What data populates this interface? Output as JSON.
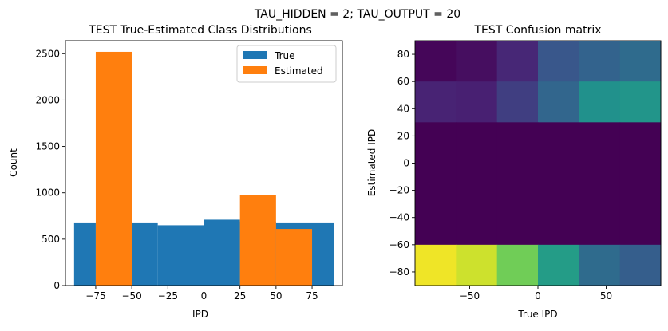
{
  "suptitle": "TAU_HIDDEN = 2; TAU_OUTPUT = 20",
  "chart_data": [
    {
      "type": "bar",
      "title": "TEST True-Estimated Class Distributions",
      "xlabel": "IPD",
      "ylabel": "Count",
      "xlim": [
        -96,
        96
      ],
      "ylim": [
        0,
        2640
      ],
      "xticks": [
        -75,
        -50,
        -25,
        0,
        25,
        50,
        75
      ],
      "yticks": [
        0,
        500,
        1000,
        1500,
        2000,
        2500
      ],
      "legend_position": "top-right",
      "series": [
        {
          "name": "True",
          "color": "#1f77b4",
          "bins": [
            {
              "x0": -90,
              "x1": -75,
              "value": 680
            },
            {
              "x0": -75,
              "x1": -50,
              "value": 680
            },
            {
              "x0": -50,
              "x1": -32,
              "value": 680
            },
            {
              "x0": -32,
              "x1": 0,
              "value": 650
            },
            {
              "x0": 0,
              "x1": 25,
              "value": 710
            },
            {
              "x0": 25,
              "x1": 50,
              "value": 690
            },
            {
              "x0": 50,
              "x1": 90,
              "value": 680
            }
          ]
        },
        {
          "name": "Estimated",
          "color": "#ff7f0e",
          "bins": [
            {
              "x0": -75,
              "x1": -50,
              "value": 2520
            },
            {
              "x0": 25,
              "x1": 50,
              "value": 975
            },
            {
              "x0": 50,
              "x1": 75,
              "value": 610
            }
          ]
        }
      ]
    },
    {
      "type": "heatmap",
      "title": "TEST Confusion matrix",
      "xlabel": "True IPD",
      "ylabel": "Estimated IPD",
      "xlim": [
        -90,
        90
      ],
      "ylim": [
        -90,
        90
      ],
      "xticks": [
        -50,
        0,
        50
      ],
      "yticks": [
        -80,
        -60,
        -40,
        -20,
        0,
        20,
        40,
        60,
        80
      ],
      "col_edges": [
        -90,
        -60,
        -30,
        0,
        30,
        60,
        90
      ],
      "row_edges": [
        90,
        60,
        30,
        -60,
        -90
      ],
      "colormap": "viridis",
      "values": [
        [
          0.02,
          0.05,
          0.14,
          0.27,
          0.32,
          0.35
        ],
        [
          0.13,
          0.12,
          0.2,
          0.33,
          0.5,
          0.52
        ],
        [
          0.0,
          0.0,
          0.0,
          0.0,
          0.0,
          0.0
        ],
        [
          0.98,
          0.93,
          0.78,
          0.55,
          0.35,
          0.3
        ]
      ]
    }
  ]
}
